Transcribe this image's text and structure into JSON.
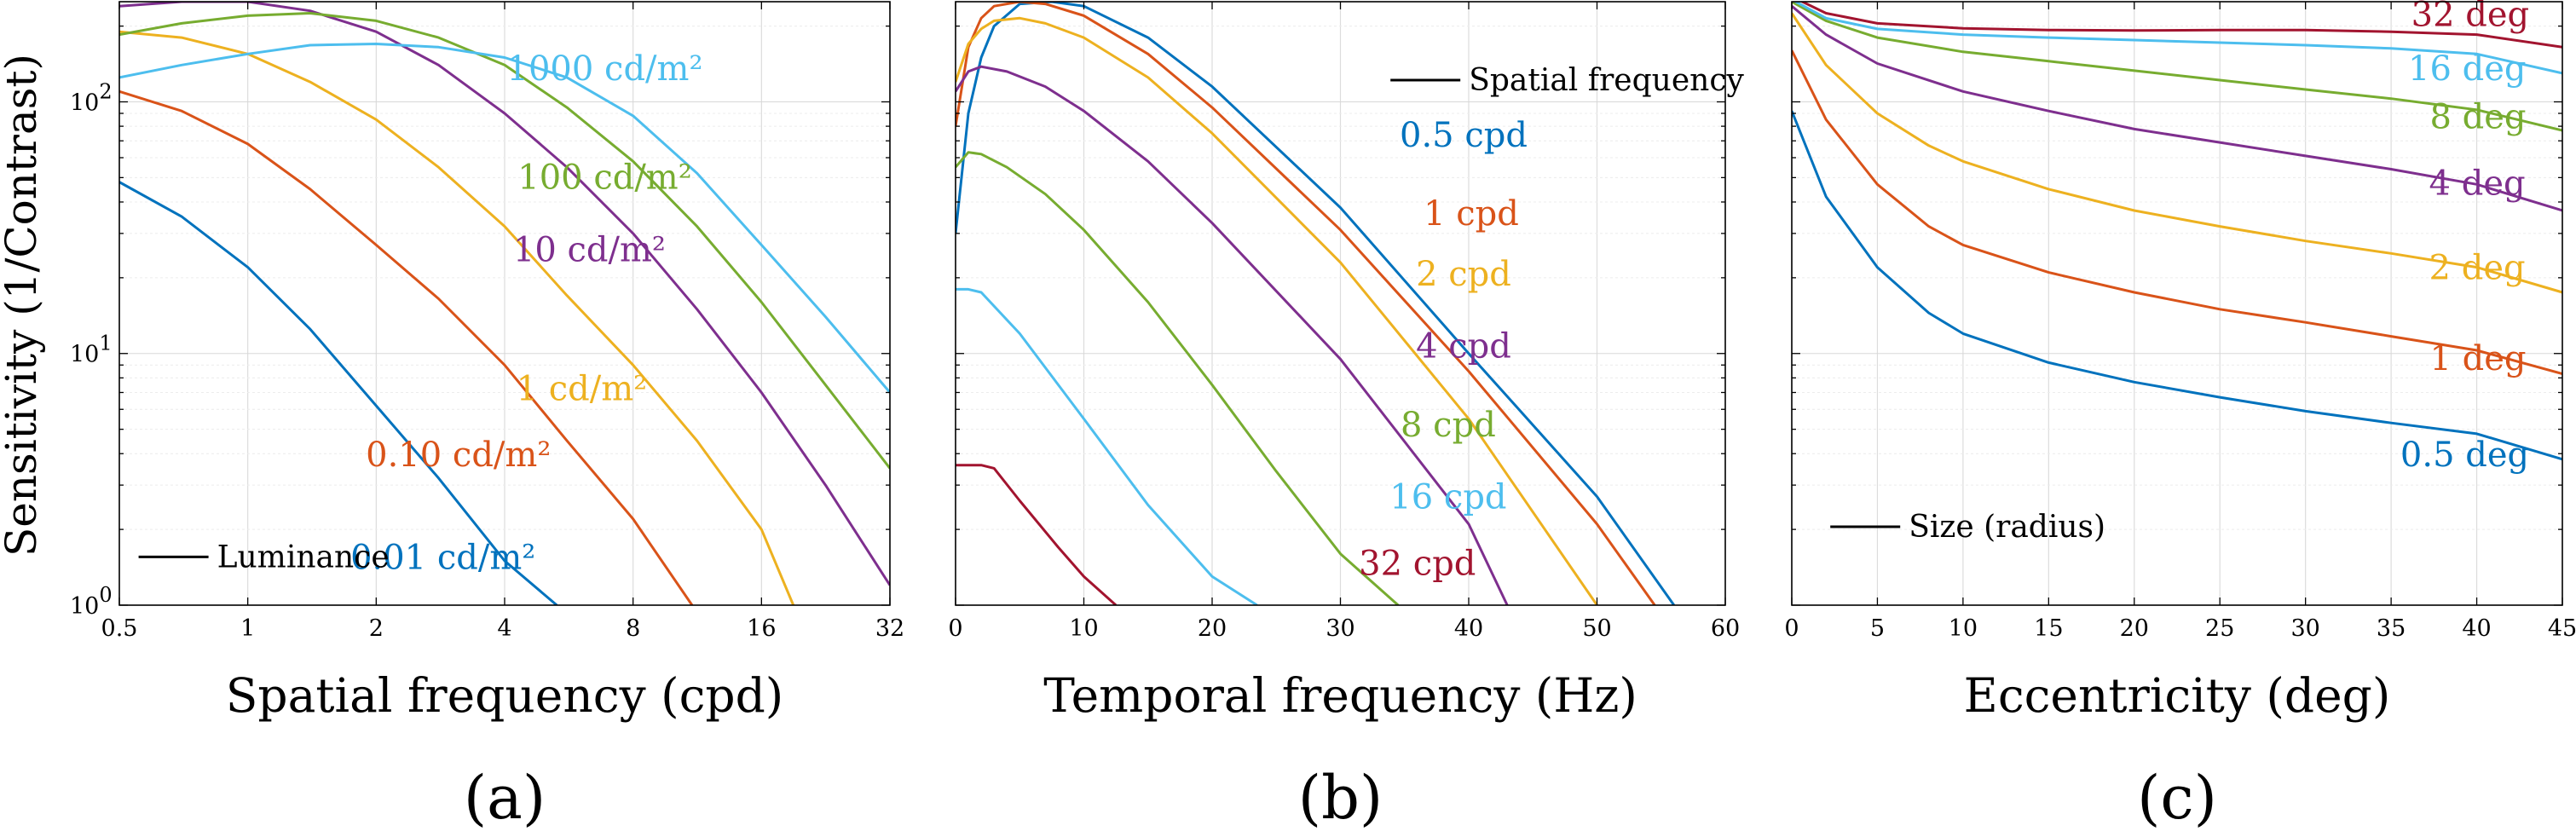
{
  "figure": {
    "y_axis_label": "Sensitivity (1/Contrast)",
    "panel_letters": [
      "(a)",
      "(b)",
      "(c)"
    ]
  },
  "colors": {
    "blue": "#0072BD",
    "orange": "#D95319",
    "yellow": "#EDB120",
    "purple": "#7E2F8E",
    "green": "#77AC30",
    "cyan": "#4DBEEE",
    "red": "#A2142F"
  },
  "chart_data": [
    {
      "type": "line",
      "xscale": "log2",
      "yscale": "log",
      "xlabel": "Spatial frequency (cpd)",
      "ylabel": "Sensitivity (1/Contrast)",
      "xlim": [
        0.5,
        32
      ],
      "ylim": [
        1,
        250
      ],
      "xticks": [
        0.5,
        1,
        2,
        4,
        8,
        16,
        32
      ],
      "xtick_labels": [
        "0.5",
        "1",
        "2",
        "4",
        "8",
        "16",
        "32"
      ],
      "grid": true,
      "legend": {
        "marker_text": "Luminance",
        "placement": "bottom-left"
      },
      "series": [
        {
          "name": "0.01 cd/m²",
          "color": "#0072BD",
          "x": [
            0.5,
            0.7,
            1,
            1.4,
            2,
            2.8,
            4,
            5.3
          ],
          "y": [
            48,
            35,
            22,
            12.5,
            6.2,
            3.2,
            1.5,
            1.0
          ]
        },
        {
          "name": "0.10 cd/m²",
          "color": "#D95319",
          "x": [
            0.5,
            0.7,
            1,
            1.4,
            2,
            2.8,
            4,
            5.6,
            8,
            11
          ],
          "y": [
            110,
            92,
            68,
            45,
            27,
            16.5,
            9,
            4.5,
            2.2,
            1.0
          ]
        },
        {
          "name": "1 cd/m²",
          "color": "#EDB120",
          "x": [
            0.5,
            0.7,
            1,
            1.4,
            2,
            2.8,
            4,
            5.6,
            8,
            11.3,
            16,
            19
          ],
          "y": [
            190,
            180,
            155,
            120,
            85,
            55,
            32,
            17,
            9,
            4.5,
            2.0,
            1.0
          ]
        },
        {
          "name": "10 cd/m²",
          "color": "#7E2F8E",
          "x": [
            0.5,
            0.7,
            1,
            1.4,
            2,
            2.8,
            4,
            5.6,
            8,
            11.3,
            16,
            22.6,
            32
          ],
          "y": [
            240,
            250,
            250,
            230,
            190,
            140,
            90,
            55,
            30,
            15,
            7,
            3,
            1.2
          ]
        },
        {
          "name": "100 cd/m²",
          "color": "#77AC30",
          "x": [
            0.5,
            0.7,
            1,
            1.4,
            2,
            2.8,
            4,
            5.6,
            8,
            11.3,
            16,
            22.6,
            32
          ],
          "y": [
            185,
            205,
            220,
            225,
            210,
            180,
            140,
            95,
            58,
            32,
            16,
            7.5,
            3.5
          ]
        },
        {
          "name": "1000 cd/m²",
          "color": "#4DBEEE",
          "x": [
            0.5,
            0.7,
            1,
            1.4,
            2,
            2.8,
            4,
            5.6,
            8,
            11.3,
            16,
            22.6,
            32
          ],
          "y": [
            125,
            140,
            155,
            168,
            170,
            165,
            150,
            125,
            88,
            52,
            27,
            14,
            7
          ]
        }
      ]
    },
    {
      "type": "line",
      "xscale": "linear",
      "yscale": "log",
      "xlabel": "Temporal frequency (Hz)",
      "xlim": [
        0,
        60
      ],
      "ylim": [
        1,
        250
      ],
      "xticks": [
        0,
        10,
        20,
        30,
        40,
        50,
        60
      ],
      "xtick_labels": [
        "0",
        "10",
        "20",
        "30",
        "40",
        "50",
        "60"
      ],
      "grid": true,
      "legend": {
        "marker_text": "Spatial frequency",
        "placement": "top-right"
      },
      "series": [
        {
          "name": "0.5 cpd",
          "color": "#0072BD",
          "x": [
            0,
            1,
            2,
            3,
            5,
            7.5,
            10,
            15,
            20,
            30,
            40,
            50,
            56
          ],
          "y": [
            30,
            90,
            150,
            200,
            245,
            250,
            240,
            180,
            115,
            38,
            10,
            2.7,
            1.0
          ]
        },
        {
          "name": "1 cpd",
          "color": "#D95319",
          "x": [
            0,
            1,
            2,
            3,
            5,
            7,
            10,
            15,
            20,
            30,
            40,
            50,
            54.5
          ],
          "y": [
            80,
            165,
            215,
            240,
            250,
            245,
            220,
            155,
            95,
            31,
            8.5,
            2.1,
            1.0
          ]
        },
        {
          "name": "2 cpd",
          "color": "#EDB120",
          "x": [
            0,
            1,
            2,
            3,
            5,
            7,
            10,
            15,
            20,
            30,
            40,
            50
          ],
          "y": [
            120,
            170,
            195,
            210,
            215,
            205,
            180,
            125,
            75,
            23,
            5.5,
            1.0
          ]
        },
        {
          "name": "4 cpd",
          "color": "#7E2F8E",
          "x": [
            0,
            1,
            2,
            4,
            7,
            10,
            15,
            20,
            30,
            40,
            43
          ],
          "y": [
            110,
            132,
            138,
            132,
            115,
            92,
            58,
            33,
            9.5,
            2.1,
            1.0
          ]
        },
        {
          "name": "8 cpd",
          "color": "#77AC30",
          "x": [
            0,
            1,
            2,
            4,
            7,
            10,
            15,
            20,
            25,
            30,
            34.5
          ],
          "y": [
            55,
            63,
            62,
            55,
            43,
            31,
            16,
            7.5,
            3.4,
            1.6,
            1.0
          ]
        },
        {
          "name": "16 cpd",
          "color": "#4DBEEE",
          "x": [
            0,
            1,
            2,
            5,
            10,
            15,
            20,
            23.5
          ],
          "y": [
            18,
            18,
            17.5,
            12,
            5.5,
            2.5,
            1.3,
            1.0
          ]
        },
        {
          "name": "32 cpd",
          "color": "#A2142F",
          "x": [
            0,
            1,
            2,
            3,
            5,
            8,
            10,
            12.5
          ],
          "y": [
            3.6,
            3.6,
            3.6,
            3.5,
            2.6,
            1.7,
            1.3,
            1.0
          ]
        }
      ]
    },
    {
      "type": "line",
      "xscale": "linear",
      "yscale": "log",
      "xlabel": "Eccentricity (deg)",
      "xlim": [
        0,
        45
      ],
      "ylim": [
        1,
        250
      ],
      "xticks": [
        0,
        5,
        10,
        15,
        20,
        25,
        30,
        35,
        40,
        45
      ],
      "xtick_labels": [
        "0",
        "5",
        "10",
        "15",
        "20",
        "25",
        "30",
        "35",
        "40",
        "45"
      ],
      "grid": true,
      "legend": {
        "marker_text": "Size (radius)",
        "placement": "bottom-left"
      },
      "series": [
        {
          "name": "0.5 deg",
          "color": "#0072BD",
          "x": [
            0,
            2,
            5,
            8,
            10,
            15,
            20,
            25,
            30,
            35,
            40,
            45
          ],
          "y": [
            92,
            42,
            22,
            14.5,
            12,
            9.2,
            7.7,
            6.7,
            5.9,
            5.3,
            4.8,
            3.8
          ]
        },
        {
          "name": "1 deg",
          "color": "#D95319",
          "x": [
            0,
            2,
            5,
            8,
            10,
            15,
            20,
            25,
            30,
            35,
            40,
            45
          ],
          "y": [
            160,
            85,
            47,
            32,
            27,
            21,
            17.5,
            15,
            13.3,
            11.7,
            10.3,
            8.3
          ]
        },
        {
          "name": "2 deg",
          "color": "#EDB120",
          "x": [
            0,
            2,
            5,
            8,
            10,
            15,
            20,
            25,
            30,
            35,
            40,
            45
          ],
          "y": [
            225,
            140,
            90,
            67,
            58,
            45,
            37,
            32,
            28,
            25,
            22,
            17.5
          ]
        },
        {
          "name": "4 deg",
          "color": "#7E2F8E",
          "x": [
            0,
            2,
            5,
            10,
            15,
            20,
            25,
            30,
            35,
            40,
            45
          ],
          "y": [
            240,
            185,
            142,
            110,
            92,
            78,
            69,
            61,
            54,
            47,
            37
          ]
        },
        {
          "name": "8 deg",
          "color": "#77AC30",
          "x": [
            0,
            2,
            5,
            10,
            15,
            20,
            25,
            30,
            35,
            40,
            45
          ],
          "y": [
            250,
            210,
            180,
            158,
            145,
            133,
            122,
            112,
            103,
            93,
            77
          ]
        },
        {
          "name": "16 deg",
          "color": "#4DBEEE",
          "x": [
            0,
            2,
            5,
            10,
            15,
            20,
            25,
            30,
            35,
            40,
            45
          ],
          "y": [
            255,
            215,
            195,
            185,
            180,
            176,
            172,
            168,
            163,
            155,
            130
          ]
        },
        {
          "name": "32 deg",
          "color": "#A2142F",
          "x": [
            0,
            2,
            5,
            10,
            15,
            20,
            25,
            30,
            35,
            40,
            45
          ],
          "y": [
            262,
            225,
            205,
            196,
            193,
            192,
            193,
            193,
            190,
            185,
            165
          ]
        }
      ]
    }
  ]
}
